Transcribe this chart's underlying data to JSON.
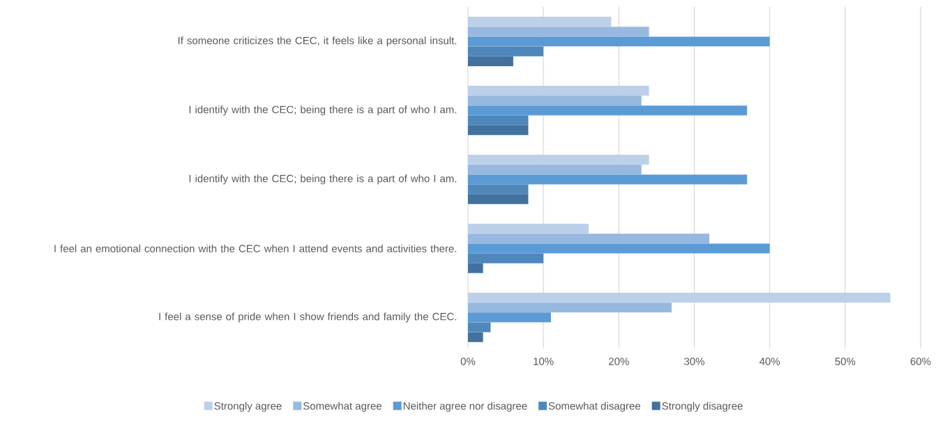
{
  "chart_data": {
    "type": "bar",
    "orientation": "horizontal",
    "categories": [
      "If someone criticizes the CEC, it feels like a personal insult.",
      "I identify with the CEC; being there is a part of who I am.",
      "I identify with the CEC; being there is a part of who I am.",
      "I feel an emotional connection with the CEC when I attend events and activities there.",
      "I feel a sense of pride when I show friends and family the CEC."
    ],
    "series": [
      {
        "name": "Strongly agree",
        "color": "#bdd0ea",
        "values": [
          19,
          24,
          24,
          16,
          56
        ]
      },
      {
        "name": "Somewhat agree",
        "color": "#97b8df",
        "values": [
          24,
          23,
          23,
          32,
          27
        ]
      },
      {
        "name": "Neither agree nor disagree",
        "color": "#5b9bd5",
        "values": [
          40,
          37,
          37,
          40,
          11
        ]
      },
      {
        "name": "Somewhat disagree",
        "color": "#4f87bb",
        "values": [
          10,
          8,
          8,
          10,
          3
        ]
      },
      {
        "name": "Strongly disagree",
        "color": "#41719c",
        "values": [
          6,
          8,
          8,
          2,
          2
        ]
      }
    ],
    "xlim": [
      0,
      60
    ],
    "xticks": [
      {
        "value": 0,
        "label": "0%"
      },
      {
        "value": 10,
        "label": "10%"
      },
      {
        "value": 20,
        "label": "20%"
      },
      {
        "value": 30,
        "label": "30%"
      },
      {
        "value": 40,
        "label": "40%"
      },
      {
        "value": 50,
        "label": "50%"
      },
      {
        "value": 60,
        "label": "60%"
      }
    ],
    "grid": "x",
    "legend": "bottom"
  }
}
